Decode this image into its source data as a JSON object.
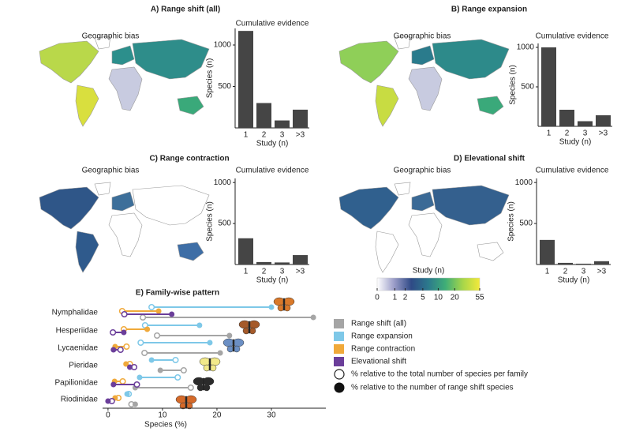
{
  "chart_data": [
    {
      "type": "bar",
      "title": "A) Range shift (all)",
      "map_label": "Geographic bias",
      "subtitle": "Cumulative evidence",
      "xlabel": "Study (n)",
      "ylabel": "Species (n)",
      "categories": [
        "1",
        "2",
        "3",
        ">3"
      ],
      "values": [
        1170,
        300,
        90,
        220
      ],
      "color": "#454545",
      "ylim": [
        0,
        1200
      ],
      "yticks": [
        500,
        1000
      ]
    },
    {
      "type": "bar",
      "title": "B) Range expansion",
      "map_label": "Geographic bias",
      "subtitle": "Cumulative evidence",
      "xlabel": "Study (n)",
      "ylabel": "Species (n)",
      "categories": [
        "1",
        "2",
        "3",
        ">3"
      ],
      "values": [
        1000,
        210,
        65,
        140
      ],
      "color": "#454545",
      "ylim": [
        0,
        1050
      ],
      "yticks": [
        500,
        1000
      ]
    },
    {
      "type": "bar",
      "title": "C) Range contraction",
      "map_label": "Geographic bias",
      "subtitle": "Cumulative evidence",
      "xlabel": "Study (n)",
      "ylabel": "Species (n)",
      "categories": [
        "1",
        "2",
        "3",
        ">3"
      ],
      "values": [
        320,
        30,
        25,
        115
      ],
      "color": "#454545",
      "ylim": [
        0,
        1050
      ],
      "yticks": [
        500,
        1000
      ]
    },
    {
      "type": "bar",
      "title": "D) Elevational shift",
      "map_label": "Geographic bias",
      "subtitle": "Cumulative evidence",
      "xlabel": "Study (n)",
      "ylabel": "Species (n)",
      "categories": [
        "1",
        "2",
        "3",
        ">3"
      ],
      "values": [
        300,
        20,
        10,
        40
      ],
      "color": "#454545",
      "ylim": [
        0,
        1050
      ],
      "yticks": [
        500,
        1000
      ]
    },
    {
      "type": "colorbar",
      "title": "Study (n)",
      "lim": [
        0,
        55
      ],
      "ticks": [
        0,
        1,
        2,
        5,
        10,
        20,
        55
      ],
      "log_scale": true,
      "colors": [
        "#ffffff",
        "#9a9cc8",
        "#2f4a86",
        "#2c7a8c",
        "#3fae77",
        "#a6d64a",
        "#f3e93a"
      ]
    },
    {
      "type": "dumbbell",
      "title": "E) Family-wise pattern",
      "xlabel": "Species (%)",
      "categories": [
        "Nymphalidae",
        "Hesperiidae",
        "Lycaenidae",
        "Pieridae",
        "Papilionidae",
        "Riodinidae"
      ],
      "xlim": [
        -1,
        40
      ],
      "xticks": [
        0,
        10,
        20,
        30
      ],
      "marker_labels": {
        "total": "% relative to the total number of species per family",
        "range_shift": "% relative to the number of range shift species"
      },
      "series": [
        {
          "name": "Range shift (all)",
          "color": "#a5a5a5",
          "total": [
            6.4,
            9,
            6.7,
            13.9,
            15.2,
            4.3
          ],
          "range_shift": [
            37.7,
            22.3,
            20.6,
            9.6,
            5,
            5
          ]
        },
        {
          "name": "Range expansion",
          "color": "#7ec8e8",
          "total": [
            8,
            6.8,
            6,
            12.4,
            12.8,
            3.8
          ],
          "range_shift": [
            30,
            16.8,
            18.7,
            8,
            5.8,
            3.5
          ]
        },
        {
          "name": "Range contraction",
          "color": "#f0a93a",
          "total": [
            2.6,
            2.9,
            3.4,
            4,
            2.7,
            1.9
          ],
          "range_shift": [
            9.3,
            7.2,
            1.3,
            3.3,
            1.2,
            1.3
          ]
        },
        {
          "name": "Elevational shift",
          "color": "#6b3e9a",
          "total": [
            3,
            0.9,
            2.3,
            4.8,
            5.3,
            0.7
          ],
          "range_shift": [
            11.7,
            2.9,
            1,
            4,
            1,
            0
          ]
        }
      ]
    }
  ]
}
